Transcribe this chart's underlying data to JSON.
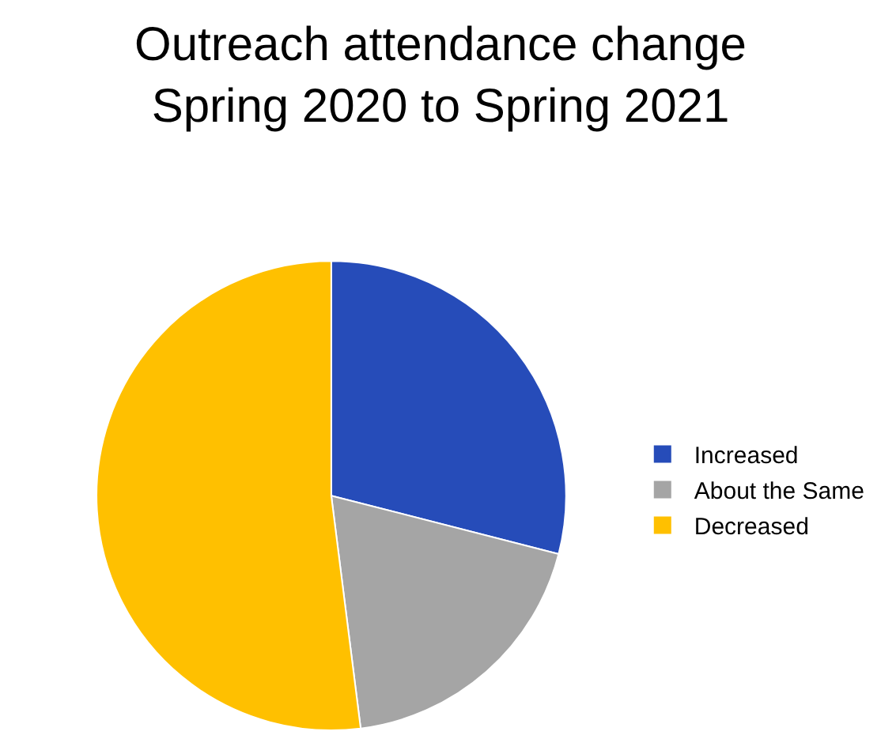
{
  "chart_data": {
    "type": "pie",
    "title": "Outreach attendance change\nSpring 2020 to Spring 2021",
    "categories": [
      "Increased",
      "About the Same",
      "Decreased"
    ],
    "values": [
      29,
      19,
      52
    ],
    "colors": [
      "#264cb9",
      "#a5a5a5",
      "#ffc000"
    ],
    "legend": "right"
  }
}
